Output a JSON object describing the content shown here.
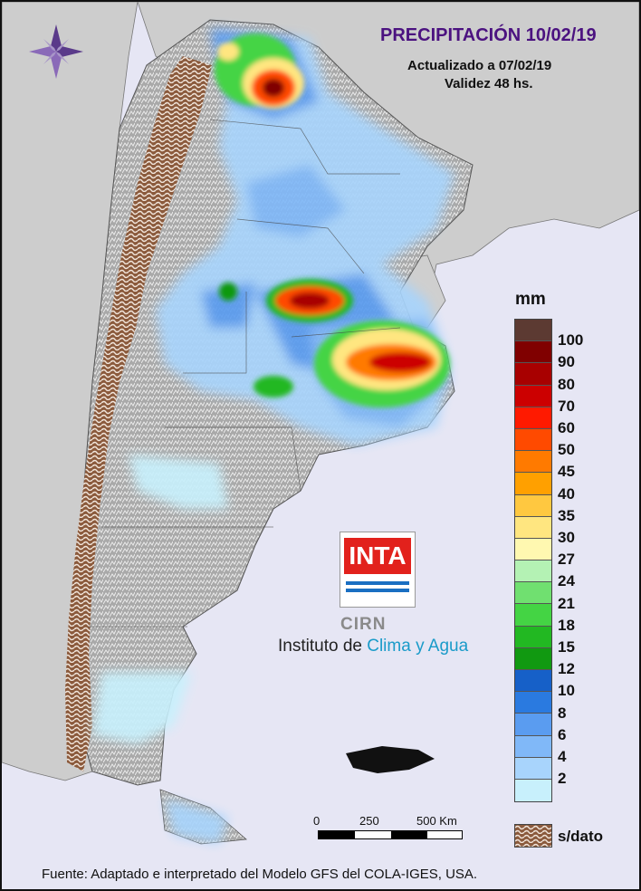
{
  "map": {
    "title": "PRECIPITACIÓN 10/02/19",
    "updated": "Actualizado a 07/02/19",
    "validity": "Validez 48 hs.",
    "compass_icon": "compass-rose-icon",
    "colors": {
      "background": "#e6e6f4",
      "land": "#b8b8b8",
      "relief_dark": "#8c8c8c",
      "no_data": "#8b5a3c",
      "title": "#4b1280"
    }
  },
  "legend": {
    "unit": "mm",
    "levels": [
      {
        "label": "100",
        "color": "#5c3a32"
      },
      {
        "label": "90",
        "color": "#800000"
      },
      {
        "label": "80",
        "color": "#a80000"
      },
      {
        "label": "70",
        "color": "#cc0000"
      },
      {
        "label": "60",
        "color": "#ff1a00"
      },
      {
        "label": "50",
        "color": "#ff4a00"
      },
      {
        "label": "45",
        "color": "#ff7a00"
      },
      {
        "label": "40",
        "color": "#ffa000"
      },
      {
        "label": "35",
        "color": "#ffc840"
      },
      {
        "label": "30",
        "color": "#ffe680"
      },
      {
        "label": "27",
        "color": "#fff8b0"
      },
      {
        "label": "24",
        "color": "#b4f2b4"
      },
      {
        "label": "21",
        "color": "#70e070"
      },
      {
        "label": "18",
        "color": "#44d444"
      },
      {
        "label": "15",
        "color": "#22b822"
      },
      {
        "label": "12",
        "color": "#119911"
      },
      {
        "label": "10",
        "color": "#1660c8"
      },
      {
        "label": "8",
        "color": "#2a7ae0"
      },
      {
        "label": "6",
        "color": "#5a9cf0"
      },
      {
        "label": "4",
        "color": "#80b8f8"
      },
      {
        "label": "2",
        "color": "#a8d4fc"
      },
      {
        "label": "",
        "color": "#c8f0fc"
      }
    ],
    "no_data_label": "s/dato"
  },
  "logo": {
    "wordmark": "INTA",
    "sub_wordmark": "CIRN",
    "institute_prefix": "Instituto de ",
    "institute_highlight": "Clima y Agua"
  },
  "scale": {
    "labels": [
      "0",
      "250",
      "500 Km"
    ]
  },
  "footer": "Fuente: Adaptado e interpretado del Modelo GFS del COLA-IGES, USA."
}
